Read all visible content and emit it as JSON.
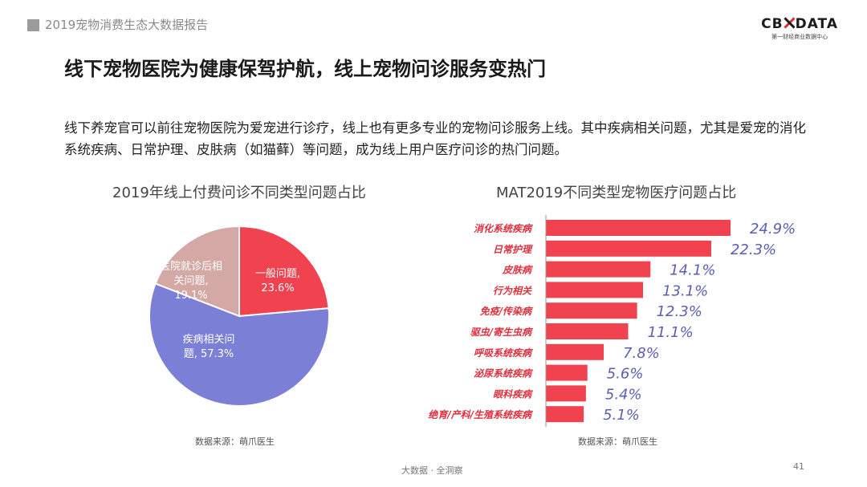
{
  "header": {
    "report_title": "2019宠物消费生态大数据报告",
    "logo_left": "CB",
    "logo_right": "DATA",
    "logo_sub": "第一财经商业数据中心"
  },
  "headline": "线下宠物医院为健康保驾护航，线上宠物问诊服务变热门",
  "description": "线下养宠官可以前往宠物医院为爱宠进行诊疗，线上也有更多专业的宠物问诊服务上线。其中疾病相关问题，尤其是爱宠的消化系统疾病、日常护理、皮肤病（如猫藓）等问题，成为线上用户医疗问诊的热门问题。",
  "colors": {
    "red": "#f0424f",
    "blue": "#7b7fd6",
    "pink": "#d4a9a5",
    "value_text": "#5a5fb4",
    "label_text": "#e0303d"
  },
  "chart_data": [
    {
      "type": "pie",
      "title": "2019年线上付费问诊不同类型问题占比",
      "slices": [
        {
          "label_lines": [
            "一般问题,",
            "23.6%"
          ],
          "value": 23.6,
          "color": "#f0424f"
        },
        {
          "label_lines": [
            "疾病相关问",
            "题, 57.3%"
          ],
          "value": 57.3,
          "color": "#7b7fd6"
        },
        {
          "label_lines": [
            "医院就诊后相",
            "关问题,",
            "19.1%"
          ],
          "value": 19.1,
          "color": "#d4a9a5"
        }
      ],
      "source": "数据来源：萌爪医生"
    },
    {
      "type": "bar",
      "orientation": "horizontal",
      "title": "MAT2019不同类型宠物医疗问题占比",
      "categories": [
        "消化系统疾病",
        "日常护理",
        "皮肤病",
        "行为相关",
        "免疫/传染病",
        "驱虫/寄生虫病",
        "呼吸系统疾病",
        "泌尿系统疾病",
        "眼科疾病",
        "绝育/产科/生殖系统疾病"
      ],
      "values": [
        24.9,
        22.3,
        14.1,
        13.1,
        12.3,
        11.1,
        7.8,
        5.6,
        5.4,
        5.1
      ],
      "value_labels": [
        "24.9%",
        "22.3%",
        "14.1%",
        "13.1%",
        "12.3%",
        "11.1%",
        "7.8%",
        "5.6%",
        "5.4%",
        "5.1%"
      ],
      "color": "#f0424f",
      "source": "数据来源：萌爪医生"
    }
  ],
  "footer": {
    "center": "大数据 · 全洞察",
    "page_number": "41"
  }
}
